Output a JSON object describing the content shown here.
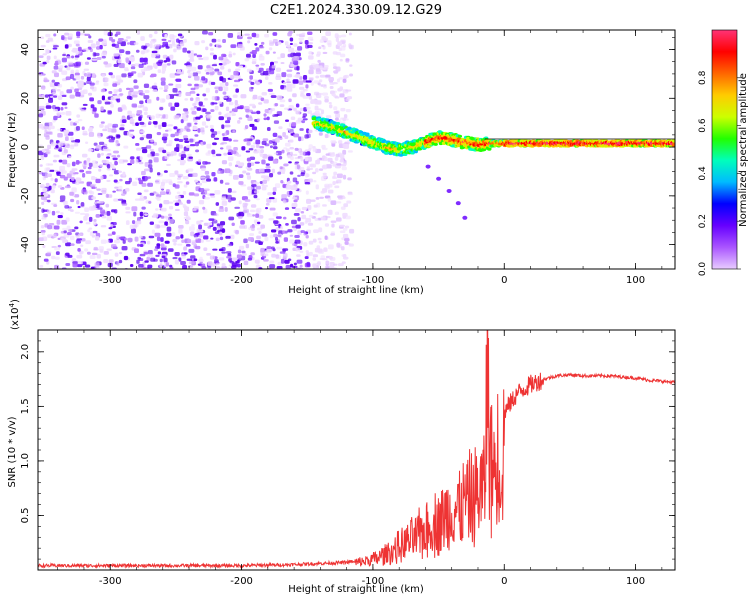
{
  "title": "C2E1.2024.330.09.12.G29",
  "chart_data": [
    {
      "type": "heatmap",
      "title": "C2E1.2024.330.09.12.G29",
      "xlabel": "Height of straight line (km)",
      "ylabel": "Frequency (Hz)",
      "xlim": [
        -355,
        130
      ],
      "ylim": [
        -50,
        48
      ],
      "xticks": [
        -300,
        -200,
        -100,
        0,
        100
      ],
      "yticks": [
        -40,
        -20,
        0,
        20,
        40
      ],
      "xtick_labels": [
        "-300",
        "-200",
        "-100",
        "0",
        "100"
      ],
      "ytick_labels": [
        "-40",
        "-20",
        "0",
        "20",
        "40"
      ],
      "colorbar": {
        "label": "Normalized spectral amplitude",
        "range": [
          0,
          1
        ],
        "ticks": [
          0,
          0.2,
          0.4,
          0.6,
          0.8
        ],
        "tick_labels": [
          "0.0",
          "0.2",
          "0.4",
          "0.6",
          "0.8"
        ],
        "colormap": [
          "#e8ccff",
          "#aa55ff",
          "#6600ff",
          "#0000ff",
          "#00bbff",
          "#00ffbb",
          "#22ff00",
          "#ccff00",
          "#ffcc00",
          "#ff6600",
          "#ff0000",
          "#ff3377"
        ]
      },
      "trace": {
        "name": "",
        "x": [
          -145,
          -130,
          -120,
          -110,
          -100,
          -90,
          -80,
          -70,
          -60,
          -50,
          -40,
          -30,
          -20,
          -10,
          0,
          20,
          40,
          60,
          80,
          100,
          120,
          130
        ],
        "y": [
          10,
          8,
          6,
          4,
          2,
          0,
          -1,
          0,
          2,
          4,
          3,
          2,
          1,
          1.5,
          1.5,
          1.5,
          1.5,
          1.5,
          1.5,
          1.5,
          1.5,
          1.5
        ]
      },
      "scatter_spur": {
        "x": [
          -58,
          -50,
          -42,
          -35,
          -30
        ],
        "y": [
          -8,
          -13,
          -18,
          -23,
          -29
        ]
      },
      "grid": false
    },
    {
      "type": "line",
      "xlabel": "Height of straight line (km)",
      "ylabel": "SNR (10 * v/v)",
      "y_exponent_label": "(x10",
      "y_exponent": "4",
      "y_exponent_close": ")",
      "xlim": [
        -355,
        130
      ],
      "ylim": [
        0,
        2.2
      ],
      "xticks": [
        -300,
        -200,
        -100,
        0,
        100
      ],
      "yticks": [
        0.5,
        1.0,
        1.5,
        2.0
      ],
      "xtick_labels": [
        "-300",
        "-200",
        "-100",
        "0",
        "100"
      ],
      "ytick_labels": [
        "0.5",
        "1.0",
        "1.5",
        "2.0"
      ],
      "series": [
        {
          "name": "",
          "color": "#ee3333",
          "x": [
            -355,
            -300,
            -250,
            -200,
            -160,
            -140,
            -120,
            -110,
            -100,
            -90,
            -80,
            -70,
            -60,
            -50,
            -40,
            -30,
            -20,
            -15,
            -13,
            -10,
            -5,
            0,
            10,
            20,
            30,
            40,
            50,
            60,
            70,
            80,
            90,
            100,
            110,
            120,
            130
          ],
          "y": [
            0.04,
            0.04,
            0.04,
            0.04,
            0.05,
            0.06,
            0.07,
            0.09,
            0.12,
            0.18,
            0.26,
            0.35,
            0.45,
            0.55,
            0.65,
            0.75,
            0.85,
            0.95,
            2.2,
            1.1,
            1.25,
            1.45,
            1.62,
            1.7,
            1.75,
            1.78,
            1.79,
            1.78,
            1.78,
            1.78,
            1.77,
            1.76,
            1.74,
            1.73,
            1.72
          ]
        }
      ],
      "noise_region": {
        "x_start": -115,
        "x_end": 0
      },
      "grid": false
    }
  ]
}
